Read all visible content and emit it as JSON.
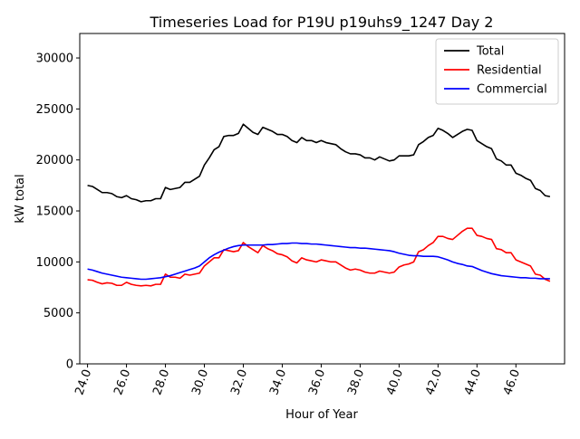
{
  "chart_data": {
    "type": "line",
    "title": "Timeseries Load for P19U p19uhs9_1247  Day 2",
    "xlabel": "Hour of Year",
    "ylabel": "kW total",
    "xlim": [
      23.6,
      48.5
    ],
    "ylim": [
      0,
      32400
    ],
    "xticks": [
      24,
      26,
      28,
      30,
      32,
      34,
      36,
      38,
      40,
      42,
      44,
      46
    ],
    "xtick_labels": [
      "24.0",
      "26.0",
      "28.0",
      "30.0",
      "32.0",
      "34.0",
      "36.0",
      "38.0",
      "40.0",
      "42.0",
      "44.0",
      "46.0"
    ],
    "yticks": [
      0,
      5000,
      10000,
      15000,
      20000,
      25000,
      30000
    ],
    "ytick_labels": [
      "0",
      "5000",
      "10000",
      "15000",
      "20000",
      "25000",
      "30000"
    ],
    "grid": false,
    "legend_position": "top-right",
    "x": [
      24.0,
      24.25,
      24.5,
      24.75,
      25.0,
      25.25,
      25.5,
      25.75,
      26.0,
      26.25,
      26.5,
      26.75,
      27.0,
      27.25,
      27.5,
      27.75,
      28.0,
      28.25,
      28.5,
      28.75,
      29.0,
      29.25,
      29.5,
      29.75,
      30.0,
      30.25,
      30.5,
      30.75,
      31.0,
      31.25,
      31.5,
      31.75,
      32.0,
      32.25,
      32.5,
      32.75,
      33.0,
      33.25,
      33.5,
      33.75,
      34.0,
      34.25,
      34.5,
      34.75,
      35.0,
      35.25,
      35.5,
      35.75,
      36.0,
      36.25,
      36.5,
      36.75,
      37.0,
      37.25,
      37.5,
      37.75,
      38.0,
      38.25,
      38.5,
      38.75,
      39.0,
      39.25,
      39.5,
      39.75,
      40.0,
      40.25,
      40.5,
      40.75,
      41.0,
      41.25,
      41.5,
      41.75,
      42.0,
      42.25,
      42.5,
      42.75,
      43.0,
      43.25,
      43.5,
      43.75,
      44.0,
      44.25,
      44.5,
      44.75,
      45.0,
      45.25,
      45.5,
      45.75,
      46.0,
      46.25,
      46.5,
      46.75,
      47.0,
      47.25,
      47.5,
      47.75
    ],
    "series": [
      {
        "name": "Total",
        "color": "#000000",
        "values": [
          17500,
          17400,
          17100,
          16800,
          16800,
          16700,
          16400,
          16300,
          16500,
          16200,
          16100,
          15900,
          16000,
          16000,
          16200,
          16200,
          17300,
          17100,
          17200,
          17300,
          17800,
          17800,
          18100,
          18400,
          19500,
          20200,
          21000,
          21300,
          22300,
          22400,
          22400,
          22600,
          23500,
          23100,
          22700,
          22500,
          23200,
          23000,
          22800,
          22500,
          22500,
          22300,
          21900,
          21700,
          22200,
          21900,
          21900,
          21700,
          21900,
          21700,
          21600,
          21500,
          21100,
          20800,
          20600,
          20600,
          20500,
          20200,
          20200,
          20000,
          20300,
          20100,
          19900,
          20000,
          20400,
          20400,
          20400,
          20500,
          21500,
          21800,
          22200,
          22400,
          23100,
          22900,
          22600,
          22200,
          22500,
          22800,
          23000,
          22900,
          21900,
          21600,
          21300,
          21100,
          20100,
          19900,
          19500,
          19500,
          18700,
          18500,
          18200,
          18000,
          17200,
          17000,
          16500,
          16400
        ]
      },
      {
        "name": "Residential",
        "color": "#ff0000",
        "values": [
          8250,
          8200,
          8000,
          7850,
          7950,
          7900,
          7700,
          7700,
          8000,
          7800,
          7700,
          7650,
          7700,
          7650,
          7800,
          7800,
          8800,
          8500,
          8500,
          8400,
          8800,
          8700,
          8800,
          8900,
          9600,
          10000,
          10400,
          10400,
          11200,
          11100,
          11000,
          11100,
          11900,
          11500,
          11200,
          10900,
          11600,
          11300,
          11100,
          10800,
          10700,
          10500,
          10100,
          9900,
          10400,
          10200,
          10100,
          10000,
          10200,
          10100,
          10000,
          10000,
          9700,
          9400,
          9200,
          9300,
          9200,
          9000,
          8900,
          8900,
          9100,
          9000,
          8900,
          9000,
          9500,
          9700,
          9800,
          10000,
          11000,
          11200,
          11600,
          11900,
          12500,
          12500,
          12300,
          12200,
          12600,
          13000,
          13300,
          13300,
          12600,
          12500,
          12300,
          12200,
          11300,
          11200,
          10900,
          10900,
          10200,
          10000,
          9800,
          9600,
          8800,
          8700,
          8300,
          8100
        ]
      },
      {
        "name": "Commercial",
        "color": "#0000ff",
        "values": [
          9300,
          9200,
          9050,
          8900,
          8800,
          8700,
          8600,
          8500,
          8450,
          8400,
          8350,
          8300,
          8300,
          8350,
          8400,
          8450,
          8550,
          8650,
          8800,
          8950,
          9100,
          9250,
          9400,
          9600,
          10000,
          10400,
          10700,
          10950,
          11150,
          11350,
          11500,
          11600,
          11650,
          11650,
          11650,
          11650,
          11650,
          11700,
          11700,
          11750,
          11800,
          11800,
          11850,
          11850,
          11800,
          11800,
          11750,
          11750,
          11700,
          11650,
          11600,
          11550,
          11500,
          11450,
          11400,
          11400,
          11350,
          11350,
          11300,
          11250,
          11200,
          11150,
          11100,
          11000,
          10850,
          10750,
          10650,
          10600,
          10600,
          10550,
          10550,
          10550,
          10500,
          10350,
          10200,
          10000,
          9850,
          9750,
          9600,
          9550,
          9350,
          9150,
          9000,
          8850,
          8750,
          8650,
          8600,
          8550,
          8500,
          8450,
          8450,
          8400,
          8400,
          8350,
          8350,
          8350
        ]
      }
    ]
  }
}
